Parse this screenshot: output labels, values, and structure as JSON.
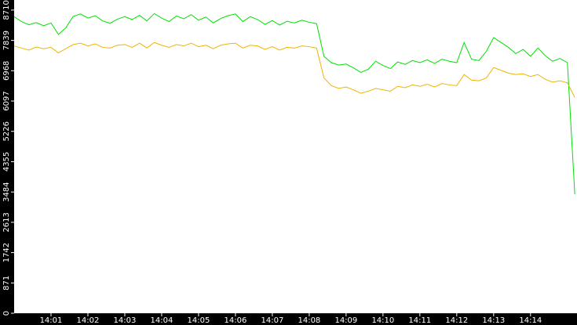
{
  "chart_data": {
    "type": "line",
    "x": [
      840.0,
      840.2,
      840.4,
      840.6,
      840.8,
      841.0,
      841.2,
      841.4,
      841.6,
      841.8,
      842.0,
      842.2,
      842.4,
      842.6,
      842.8,
      843.0,
      843.2,
      843.4,
      843.6,
      843.8,
      844.0,
      844.2,
      844.4,
      844.6,
      844.8,
      845.0,
      845.2,
      845.4,
      845.6,
      845.8,
      846.0,
      846.2,
      846.4,
      846.6,
      846.8,
      847.0,
      847.2,
      847.4,
      847.6,
      847.8,
      848.0,
      848.2,
      848.4,
      848.6,
      848.8,
      849.0,
      849.2,
      849.4,
      849.6,
      849.8,
      850.0,
      850.2,
      850.4,
      850.6,
      850.8,
      851.0,
      851.2,
      851.4,
      851.6,
      851.8,
      852.0,
      852.2,
      852.4,
      852.6,
      852.8,
      853.0,
      853.2,
      853.4,
      853.6,
      853.8,
      854.0,
      854.2,
      854.4,
      854.6,
      854.8,
      855.0,
      855.2
    ],
    "series": [
      {
        "color": "#00e000",
        "values": [
          8520,
          8380,
          8290,
          8350,
          8260,
          8340,
          8010,
          8200,
          8530,
          8600,
          8480,
          8550,
          8400,
          8330,
          8450,
          8520,
          8440,
          8560,
          8400,
          8610,
          8480,
          8380,
          8540,
          8460,
          8580,
          8420,
          8510,
          8340,
          8470,
          8550,
          8600,
          8380,
          8520,
          8440,
          8300,
          8410,
          8280,
          8390,
          8340,
          8420,
          8360,
          8320,
          7380,
          7200,
          7130,
          7160,
          7050,
          6920,
          7010,
          7240,
          7120,
          7030,
          7220,
          7150,
          7260,
          7200,
          7280,
          7180,
          7300,
          7240,
          7200,
          7780,
          7300,
          7260,
          7520,
          7920,
          7780,
          7640,
          7460,
          7580,
          7380,
          7620,
          7400,
          7240,
          7320,
          7200,
          3420
        ]
      },
      {
        "color": "#f0b400",
        "values": [
          7680,
          7620,
          7560,
          7650,
          7600,
          7640,
          7480,
          7600,
          7720,
          7760,
          7680,
          7740,
          7640,
          7620,
          7700,
          7720,
          7640,
          7760,
          7620,
          7780,
          7700,
          7640,
          7720,
          7680,
          7760,
          7660,
          7700,
          7600,
          7700,
          7740,
          7760,
          7620,
          7700,
          7680,
          7580,
          7660,
          7560,
          7640,
          7620,
          7680,
          7660,
          7620,
          6760,
          6540,
          6460,
          6500,
          6420,
          6320,
          6380,
          6460,
          6420,
          6380,
          6520,
          6480,
          6560,
          6520,
          6580,
          6500,
          6600,
          6560,
          6540,
          6860,
          6700,
          6680,
          6760,
          7060,
          6980,
          6900,
          6860,
          6880,
          6800,
          6860,
          6720,
          6640,
          6680,
          6620,
          6200
        ]
      }
    ],
    "xlim": [
      840,
      855.26
    ],
    "xticks": [
      {
        "value": 841,
        "label": "14:01"
      },
      {
        "value": 842,
        "label": "14:02"
      },
      {
        "value": 843,
        "label": "14:03"
      },
      {
        "value": 844,
        "label": "14:04"
      },
      {
        "value": 845,
        "label": "14:05"
      },
      {
        "value": 846,
        "label": "14:06"
      },
      {
        "value": 847,
        "label": "14:07"
      },
      {
        "value": 848,
        "label": "14:08"
      },
      {
        "value": 849,
        "label": "14:09"
      },
      {
        "value": 850,
        "label": "14:10"
      },
      {
        "value": 851,
        "label": "14:11"
      },
      {
        "value": 852,
        "label": "14:12"
      },
      {
        "value": 853,
        "label": "14:13"
      },
      {
        "value": 854,
        "label": "14:14"
      }
    ],
    "ylim": [
      0,
      9000
    ],
    "yticks": [
      0,
      871,
      1742,
      2613,
      3484,
      4355,
      5226,
      6097,
      6968,
      7839,
      8710
    ],
    "grid": false
  }
}
